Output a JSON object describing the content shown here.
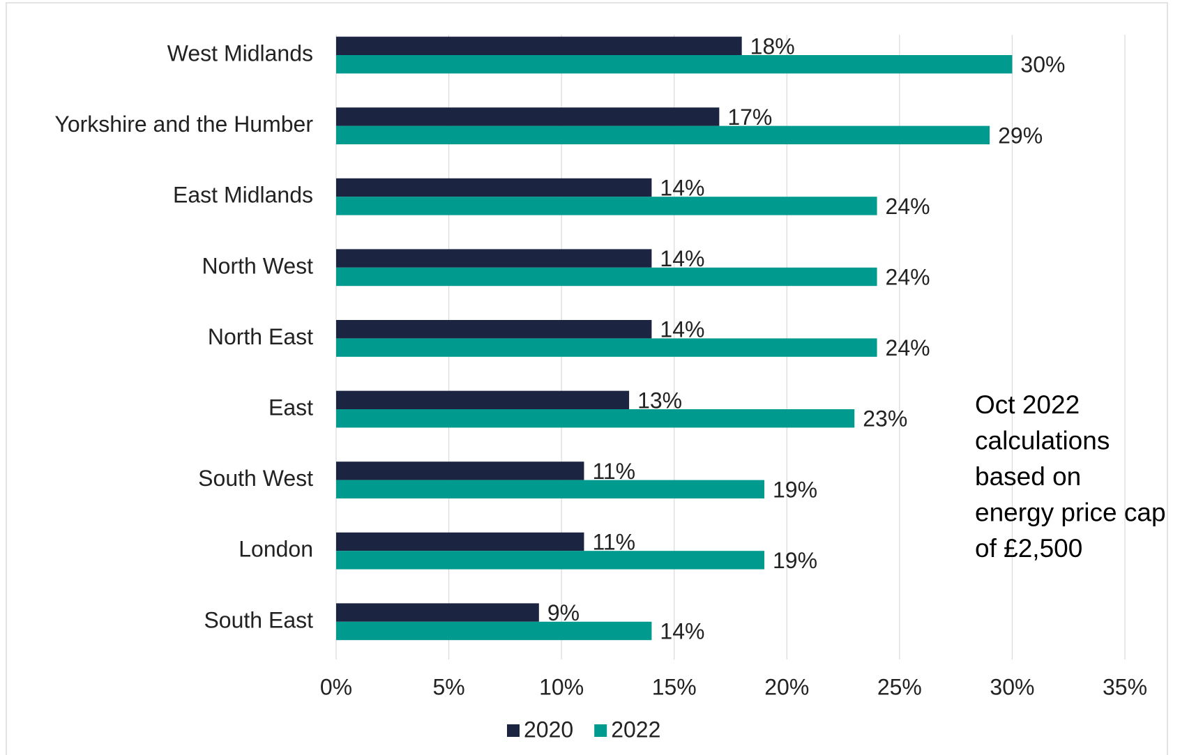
{
  "chart_data": {
    "type": "hbar",
    "categories": [
      "West Midlands",
      "Yorkshire and the Humber",
      "East Midlands",
      "North West",
      "North East",
      "East",
      "South West",
      "London",
      "South East"
    ],
    "series": [
      {
        "name": "2020",
        "color": "#1b2541",
        "values": [
          18,
          17,
          14,
          14,
          14,
          13,
          11,
          11,
          9
        ],
        "value_labels": [
          "18%",
          "17%",
          "14%",
          "14%",
          "14%",
          "13%",
          "11%",
          "11%",
          "9%"
        ]
      },
      {
        "name": "2022",
        "color": "#009a8e",
        "values": [
          30,
          29,
          24,
          24,
          24,
          23,
          19,
          19,
          14
        ],
        "value_labels": [
          "30%",
          "29%",
          "24%",
          "24%",
          "24%",
          "23%",
          "19%",
          "19%",
          "14%"
        ]
      }
    ],
    "xlim": [
      0,
      35
    ],
    "xticks": [
      {
        "value": 0,
        "label": "0%"
      },
      {
        "value": 5,
        "label": "5%"
      },
      {
        "value": 10,
        "label": "10%"
      },
      {
        "value": 15,
        "label": "15%"
      },
      {
        "value": 20,
        "label": "20%"
      },
      {
        "value": 25,
        "label": "25%"
      },
      {
        "value": 30,
        "label": "30%"
      },
      {
        "value": 35,
        "label": "35%"
      }
    ],
    "grid": true,
    "legend": "bottom",
    "annotation": [
      "Oct 2022",
      "calculations",
      "based on",
      "energy price cap",
      "of £2,500"
    ]
  }
}
